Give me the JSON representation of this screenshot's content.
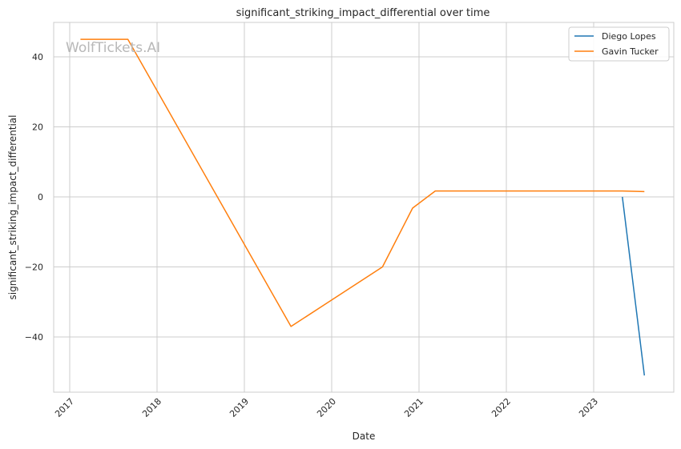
{
  "chart_data": {
    "type": "line",
    "title": "significant_striking_impact_differential over time",
    "xlabel": "Date",
    "ylabel": "significant_striking_impact_differential",
    "watermark": "WolfTickets.AI",
    "grid": true,
    "legend_placement": "top-right",
    "x_tick_labels": [
      "2017",
      "2018",
      "2019",
      "2020",
      "2021",
      "2022",
      "2023"
    ],
    "y_tick_labels": [
      "40",
      "20",
      "0",
      "−20",
      "−40"
    ],
    "ylim": [
      -55,
      50
    ],
    "series": [
      {
        "name": "Diego Lopes",
        "color": "#1f77b4",
        "points": [
          {
            "x": "2023-05-01",
            "y": 0.0
          },
          {
            "x": "2023-08-01",
            "y": -51.0
          }
        ]
      },
      {
        "name": "Gavin Tucker",
        "color": "#ff7f0e",
        "points": [
          {
            "x": "2017-02-15",
            "y": 45.0
          },
          {
            "x": "2017-09-01",
            "y": 45.0
          },
          {
            "x": "2019-07-15",
            "y": -37.0
          },
          {
            "x": "2020-08-01",
            "y": -20.0
          },
          {
            "x": "2020-12-05",
            "y": -3.2
          },
          {
            "x": "2021-03-10",
            "y": 1.7
          },
          {
            "x": "2023-05-01",
            "y": 1.7
          },
          {
            "x": "2023-08-01",
            "y": 1.5
          }
        ]
      }
    ]
  }
}
